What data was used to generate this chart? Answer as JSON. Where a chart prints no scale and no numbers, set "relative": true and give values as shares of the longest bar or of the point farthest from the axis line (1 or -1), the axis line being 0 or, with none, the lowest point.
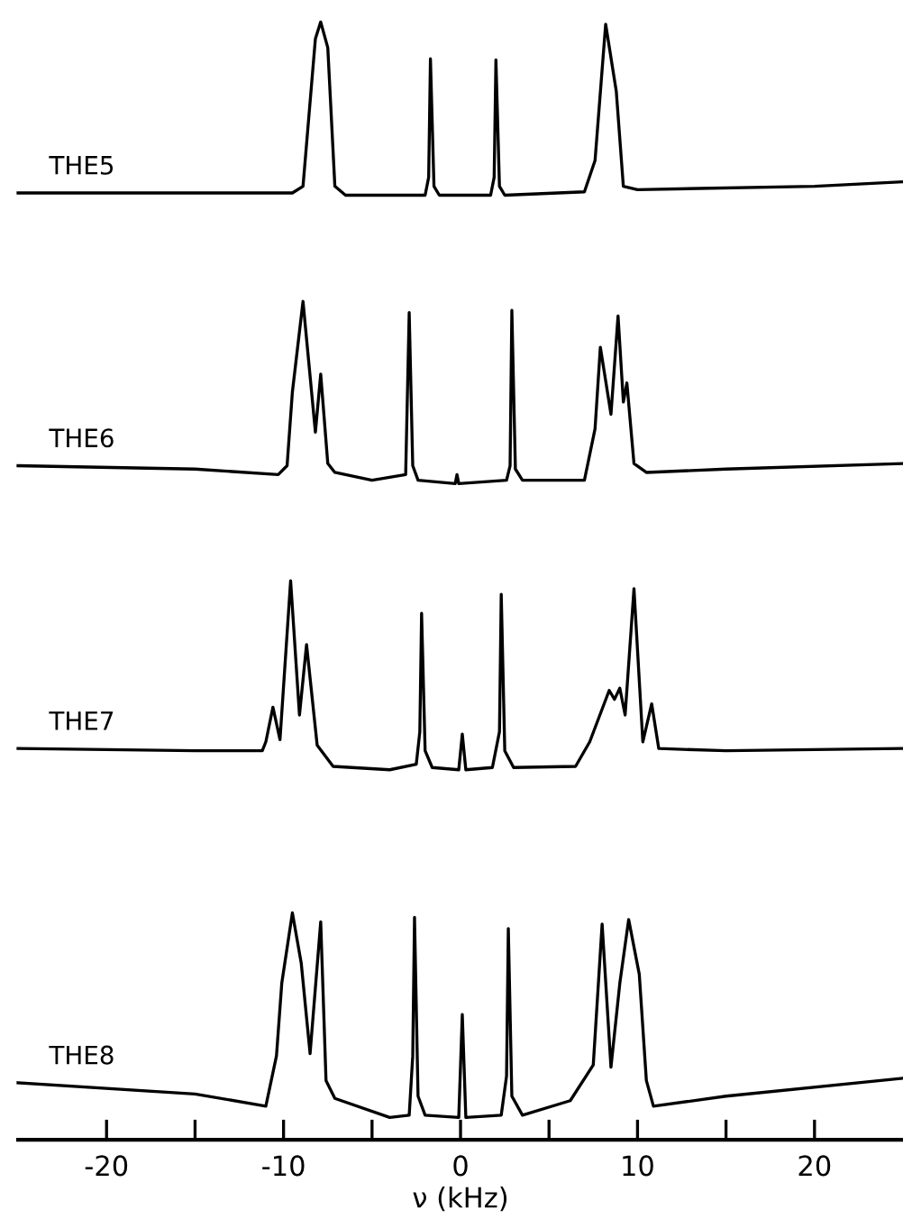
{
  "chart_data": {
    "type": "line",
    "relative": true,
    "xlim": [
      -25,
      25
    ],
    "xticks": [
      {
        "value": -20,
        "label": "-20"
      },
      {
        "value": -15,
        "label": null
      },
      {
        "value": -10,
        "label": "-10"
      },
      {
        "value": -5,
        "label": null
      },
      0,
      {
        "value": 5,
        "label": null
      },
      10,
      {
        "value": 15,
        "label": null
      },
      20
    ],
    "tick_labels": "x",
    "xlabel": "ν (kHz)",
    "series": [
      {
        "name": "THE5",
        "color": "#000000",
        "x": [
          -25,
          -15,
          -9.5,
          -8.9,
          -8.2,
          -7.9,
          -7.5,
          -7.1,
          -6.5,
          -2.0,
          -1.8,
          -1.7,
          -1.5,
          -1.2,
          1.7,
          1.9,
          2.0,
          2.2,
          2.5,
          7.0,
          7.6,
          8.2,
          8.8,
          9.2,
          10,
          20,
          25
        ],
        "values": [
          0.847,
          0.847,
          0.847,
          0.853,
          0.985,
          1.0,
          0.977,
          0.853,
          0.845,
          0.845,
          0.861,
          0.967,
          0.853,
          0.845,
          0.845,
          0.861,
          0.966,
          0.853,
          0.845,
          0.848,
          0.876,
          0.998,
          0.938,
          0.853,
          0.85,
          0.853,
          0.857
        ]
      },
      {
        "name": "THE6",
        "color": "#000000",
        "x": [
          -25,
          -15,
          -10.3,
          -9.8,
          -9.5,
          -8.9,
          -8.2,
          -7.9,
          -7.5,
          -7.1,
          -5,
          -3.1,
          -2.9,
          -2.7,
          -2.4,
          -0.3,
          -0.2,
          -0.1,
          2.6,
          2.8,
          2.9,
          3.1,
          3.5,
          7.0,
          7.6,
          7.9,
          8.5,
          8.9,
          9.2,
          9.4,
          9.8,
          10.5,
          15,
          25
        ],
        "values": [
          0.603,
          0.6,
          0.595,
          0.603,
          0.669,
          0.75,
          0.633,
          0.685,
          0.605,
          0.597,
          0.59,
          0.595,
          0.74,
          0.603,
          0.59,
          0.587,
          0.595,
          0.587,
          0.59,
          0.603,
          0.742,
          0.6,
          0.59,
          0.59,
          0.636,
          0.709,
          0.649,
          0.737,
          0.66,
          0.677,
          0.605,
          0.597,
          0.6,
          0.605
        ]
      },
      {
        "name": "THE7",
        "color": "#000000",
        "x": [
          -25,
          -15,
          -11.2,
          -11.0,
          -10.6,
          -10.2,
          -9.6,
          -9.1,
          -8.7,
          -8.1,
          -7.2,
          -4,
          -2.5,
          -2.3,
          -2.2,
          -2.0,
          -1.6,
          -0.1,
          0.1,
          0.3,
          1.8,
          2.2,
          2.3,
          2.5,
          3.0,
          6.5,
          7.3,
          8.4,
          8.7,
          9.0,
          9.3,
          9.8,
          10.3,
          10.8,
          11.2,
          15,
          25
        ],
        "values": [
          0.35,
          0.348,
          0.348,
          0.356,
          0.387,
          0.358,
          0.5,
          0.38,
          0.443,
          0.353,
          0.334,
          0.331,
          0.336,
          0.365,
          0.471,
          0.348,
          0.333,
          0.331,
          0.363,
          0.331,
          0.333,
          0.365,
          0.488,
          0.348,
          0.333,
          0.334,
          0.356,
          0.402,
          0.394,
          0.404,
          0.38,
          0.493,
          0.356,
          0.39,
          0.35,
          0.348,
          0.35
        ]
      },
      {
        "name": "THE8",
        "color": "#000000",
        "x": [
          -25,
          -15,
          -11,
          -10.4,
          -10.1,
          -9.5,
          -9.0,
          -8.5,
          -7.9,
          -7.6,
          -7.1,
          -4,
          -2.9,
          -2.7,
          -2.6,
          -2.4,
          -2.0,
          -0.1,
          0.1,
          0.3,
          2.3,
          2.6,
          2.7,
          2.9,
          3.5,
          6.2,
          7.5,
          8.0,
          8.5,
          9.0,
          9.5,
          10.1,
          10.5,
          10.9,
          15,
          25
        ],
        "values": [
          0.051,
          0.041,
          0.03,
          0.075,
          0.14,
          0.203,
          0.158,
          0.077,
          0.195,
          0.053,
          0.037,
          0.02,
          0.022,
          0.075,
          0.199,
          0.039,
          0.022,
          0.02,
          0.112,
          0.02,
          0.022,
          0.057,
          0.189,
          0.039,
          0.022,
          0.035,
          0.067,
          0.193,
          0.065,
          0.14,
          0.197,
          0.148,
          0.053,
          0.03,
          0.039,
          0.055
        ]
      }
    ]
  }
}
